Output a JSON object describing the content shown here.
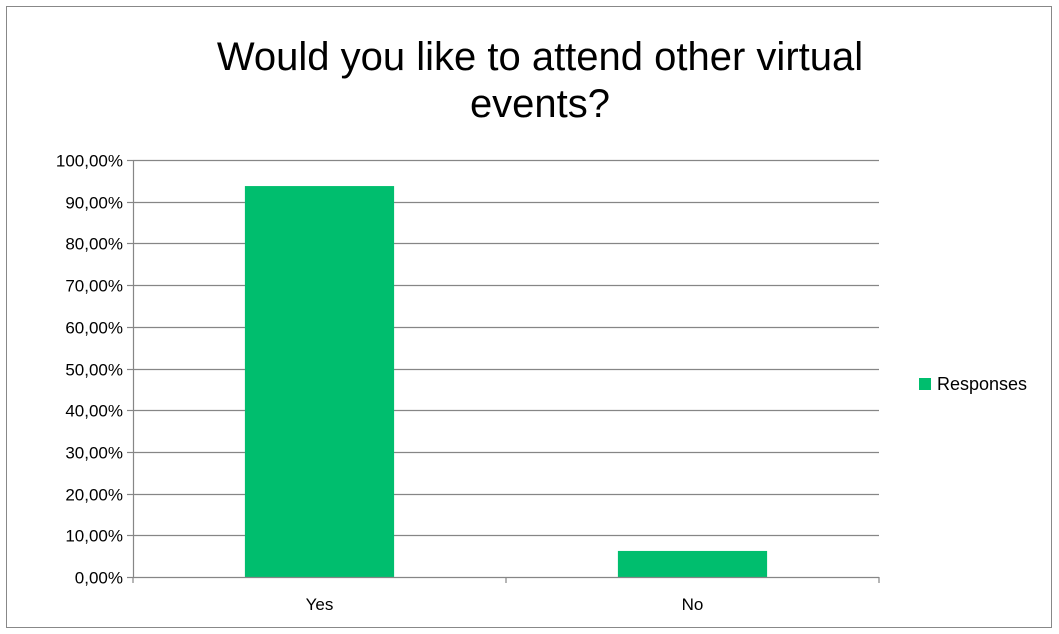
{
  "chart_data": {
    "type": "bar",
    "title_lines": [
      "Would you like to attend other virtual",
      "events?"
    ],
    "categories": [
      "Yes",
      "No"
    ],
    "series": [
      {
        "name": "Responses",
        "values": [
          93.75,
          6.25
        ]
      }
    ],
    "y_ticks": [
      "0,00%",
      "10,00%",
      "20,00%",
      "30,00%",
      "40,00%",
      "50,00%",
      "60,00%",
      "70,00%",
      "80,00%",
      "90,00%",
      "100,00%"
    ],
    "ylim": [
      0,
      100
    ],
    "grid": true,
    "legend_position": "right",
    "colors": {
      "bar": "#00BE6E",
      "grid": "#868686",
      "axis": "#868686"
    }
  }
}
